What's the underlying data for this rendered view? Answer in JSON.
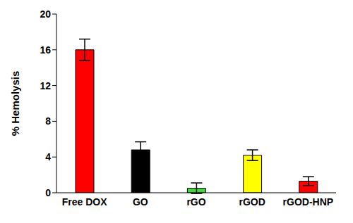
{
  "chart_data": {
    "type": "bar",
    "y_label": "% Hemolysis",
    "categories": [
      "Free DOX",
      "GO",
      "rGO",
      "rGOD",
      "rGOD-HNP"
    ],
    "values": [
      16.0,
      4.8,
      0.5,
      4.2,
      1.3
    ],
    "errors": [
      1.2,
      0.9,
      0.6,
      0.6,
      0.5
    ],
    "colors": [
      "#ff0000",
      "#000000",
      "#44d444",
      "#ffff00",
      "#ff0000"
    ],
    "ylim": [
      0,
      20
    ],
    "yticks": [
      0,
      4,
      8,
      12,
      16,
      20
    ],
    "grid": false
  }
}
